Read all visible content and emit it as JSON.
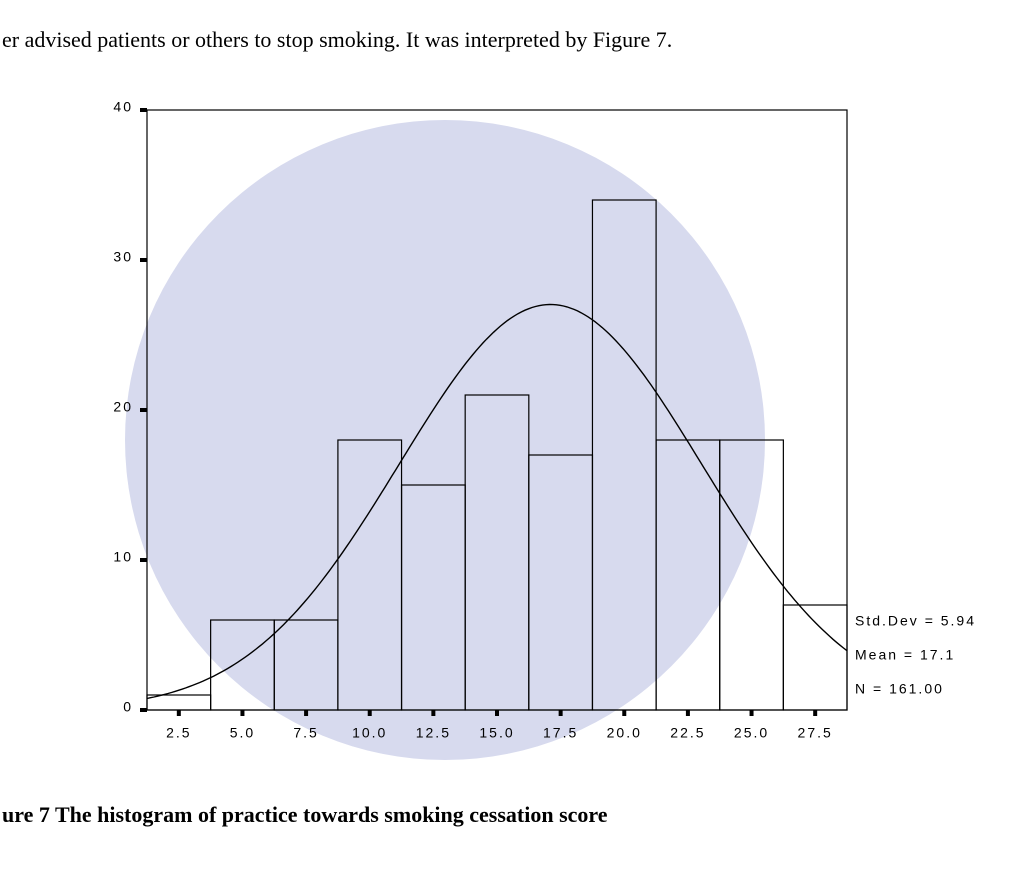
{
  "text_line": "er advised patients or others to stop smoking. It was interpreted by Figure 7.",
  "caption": "ure 7  The histogram of practice towards smoking cessation score",
  "chart_data": {
    "type": "histogram",
    "bins": [
      1.25,
      3.75,
      6.25,
      8.75,
      11.25,
      13.75,
      16.25,
      18.75,
      21.25,
      23.75,
      26.25,
      28.75
    ],
    "values": [
      1,
      6,
      6,
      18,
      15,
      21,
      17,
      34,
      18,
      18,
      7
    ],
    "color": "#000000",
    "xlim": [
      1.25,
      28.75
    ],
    "xticks": [
      2.5,
      {
        "value": 5,
        "label": "5.0"
      },
      7.5,
      {
        "value": 10,
        "label": "10.0"
      },
      12.5,
      {
        "value": 15,
        "label": "15.0"
      },
      17.5,
      {
        "value": 20,
        "label": "20.0"
      },
      22.5,
      {
        "value": 25,
        "label": "25.0"
      },
      27.5
    ],
    "ylim": [
      0,
      40
    ],
    "yticks": [
      0,
      10,
      20,
      30,
      40
    ],
    "stats": [
      {
        "value": 5.94,
        "label": "Std.Dev = 5.94"
      },
      {
        "value": 17.1,
        "label": "Mean = 17.1"
      },
      {
        "value": 161,
        "label": "N = 161.00"
      }
    ]
  }
}
